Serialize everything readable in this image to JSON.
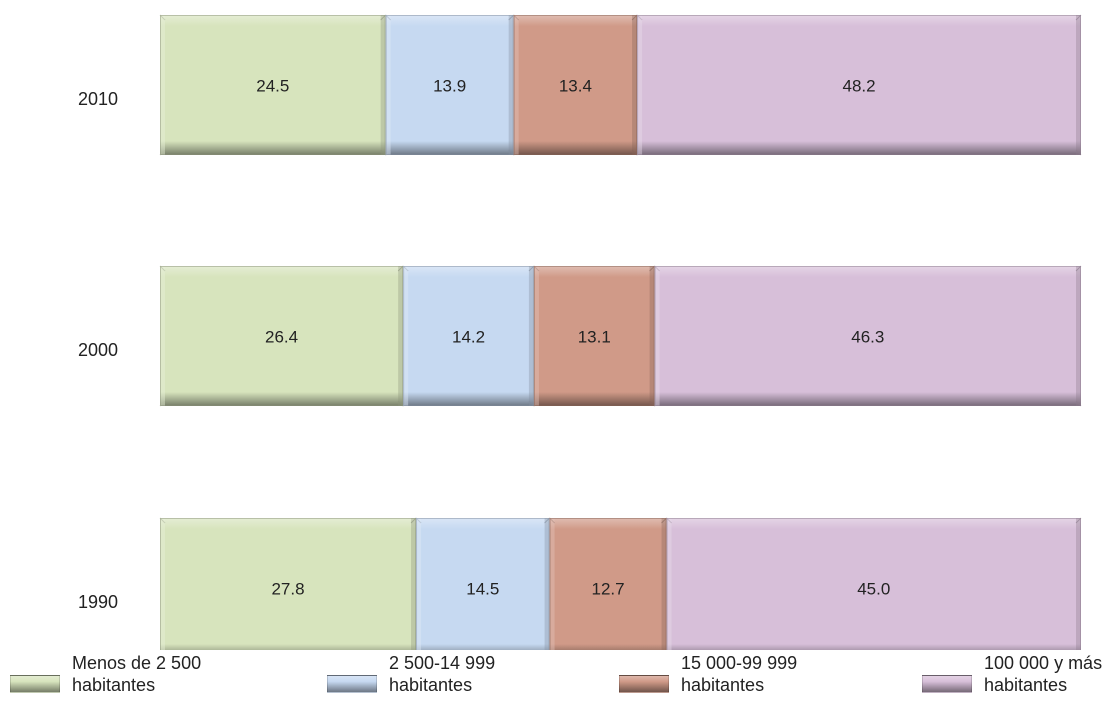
{
  "chart_data": {
    "type": "bar",
    "orientation": "horizontal",
    "stacked": true,
    "categories": [
      "2010",
      "2000",
      "1990"
    ],
    "series": [
      {
        "name": "Menos de 2 500\nhabitantes",
        "values": [
          24.5,
          26.4,
          27.8
        ],
        "color": "#d7e4bd"
      },
      {
        "name": "2 500-14 999\nhabitantes",
        "values": [
          13.9,
          14.2,
          14.5
        ],
        "color": "#c6d9f1"
      },
      {
        "name": "15 000-99 999\nhabitantes",
        "values": [
          13.4,
          13.1,
          12.7
        ],
        "color": "#d09a88"
      },
      {
        "name": "100 000 y más\nhabitantes",
        "values": [
          48.2,
          46.3,
          45.0
        ],
        "color": "#d7bfd9"
      }
    ],
    "xlim": [
      0,
      100
    ],
    "grid": false,
    "legend": "bottom"
  }
}
